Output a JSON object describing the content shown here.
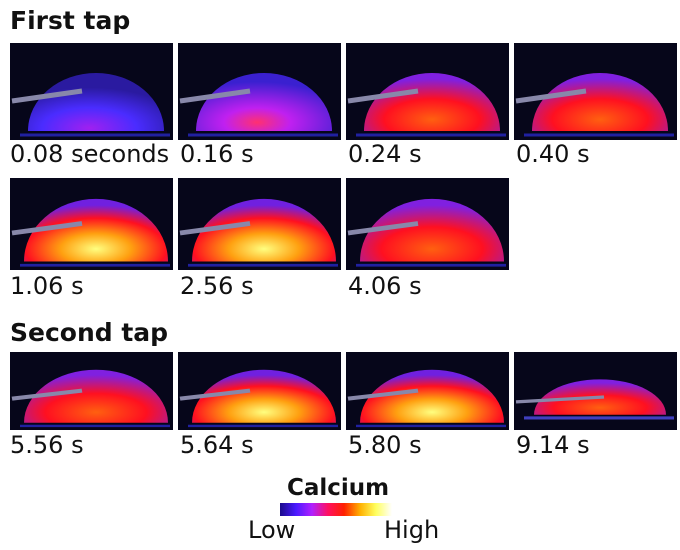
{
  "sections": [
    {
      "title": "First tap",
      "panels": [
        "0.08 seconds",
        "0.16 s",
        "0.24 s",
        "0.40 s",
        "1.06 s",
        "2.56 s",
        "4.06 s"
      ]
    },
    {
      "title": "Second tap",
      "panels": [
        "5.56 s",
        "5.64 s",
        "5.80 s",
        "9.14 s"
      ]
    }
  ],
  "colorbar": {
    "title": "Calcium",
    "low": "Low",
    "high": "High"
  }
}
